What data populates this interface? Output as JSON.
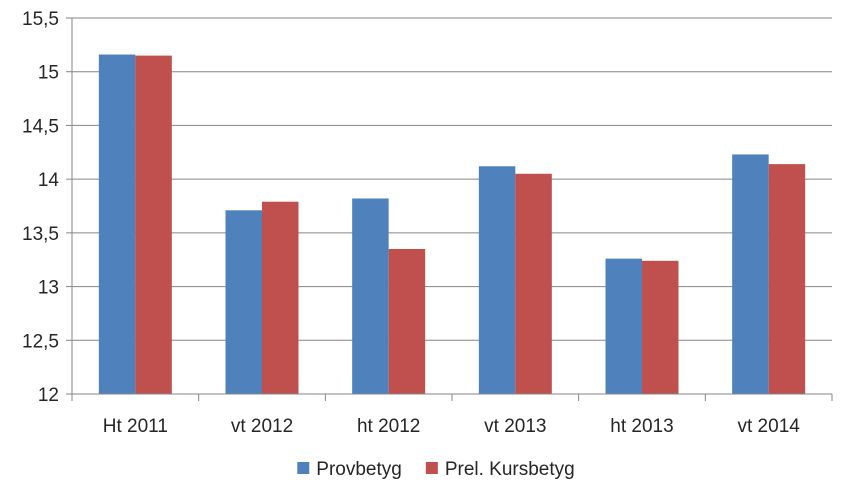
{
  "chart_data": {
    "type": "bar",
    "title": "",
    "xlabel": "",
    "ylabel": "",
    "categories": [
      "Ht 2011",
      "vt 2012",
      "ht 2012",
      "vt 2013",
      "ht 2013",
      "vt 2014"
    ],
    "series": [
      {
        "name": "Provbetyg",
        "color": "#4f81bd",
        "values": [
          15.16,
          13.71,
          13.82,
          14.12,
          13.26,
          14.23
        ]
      },
      {
        "name": "Prel. Kursbetyg",
        "color": "#c0504d",
        "values": [
          15.15,
          13.79,
          13.35,
          14.05,
          13.24,
          14.14
        ]
      }
    ],
    "ylim": [
      12,
      15.5
    ],
    "yticks": [
      "12",
      "12,5",
      "13",
      "13,5",
      "14",
      "14,5",
      "15",
      "15,5"
    ],
    "grid": true,
    "legend_position": "bottom"
  }
}
